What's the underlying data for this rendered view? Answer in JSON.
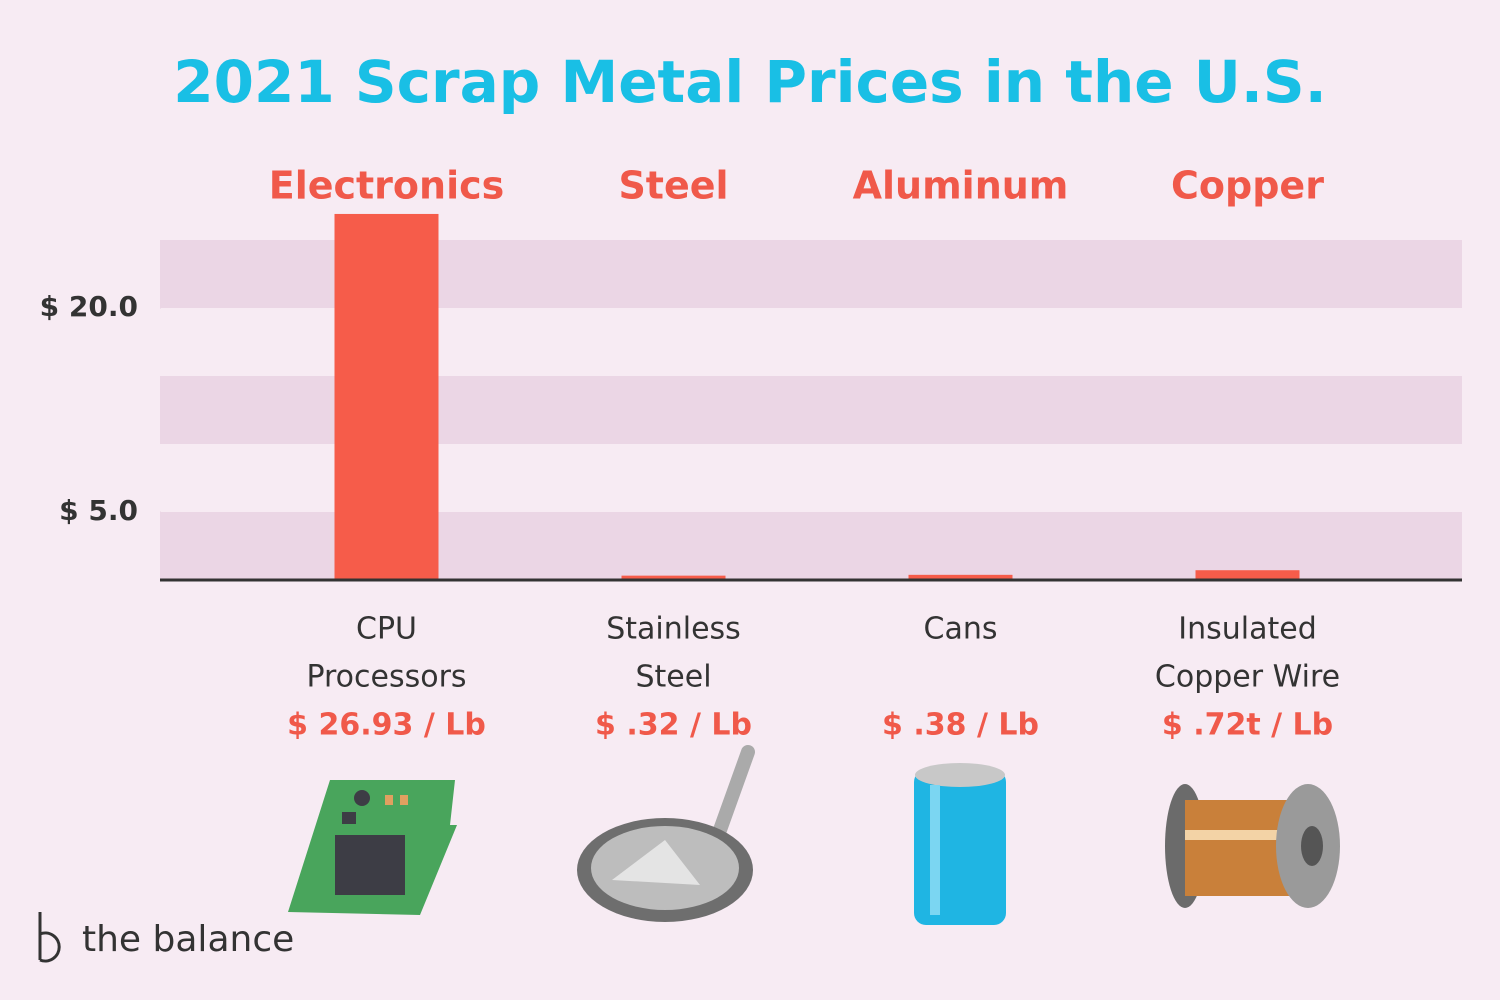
{
  "chart_data": {
    "type": "bar",
    "title": "2021 Scrap Metal Prices in the U.S.",
    "groups": [
      "Electronics",
      "Steel",
      "Aluminum",
      "Copper"
    ],
    "categories": [
      [
        "CPU",
        "Processors"
      ],
      [
        "Stainless",
        "Steel"
      ],
      [
        "Cans"
      ],
      [
        "Insulated",
        "Copper Wire"
      ]
    ],
    "values": [
      26.93,
      0.32,
      0.38,
      0.72
    ],
    "value_labels": [
      "$ 26.93 / Lb",
      "$ .32 / Lb",
      "$ .38 / Lb",
      "$ .72t / Lb"
    ],
    "color": "#f65c4a",
    "ylim": [
      0,
      27
    ],
    "yticks": [
      {
        "value": 5,
        "label": "$ 5.0"
      },
      {
        "value": 20,
        "label": "$ 20.0"
      }
    ],
    "logo": "the balance"
  }
}
